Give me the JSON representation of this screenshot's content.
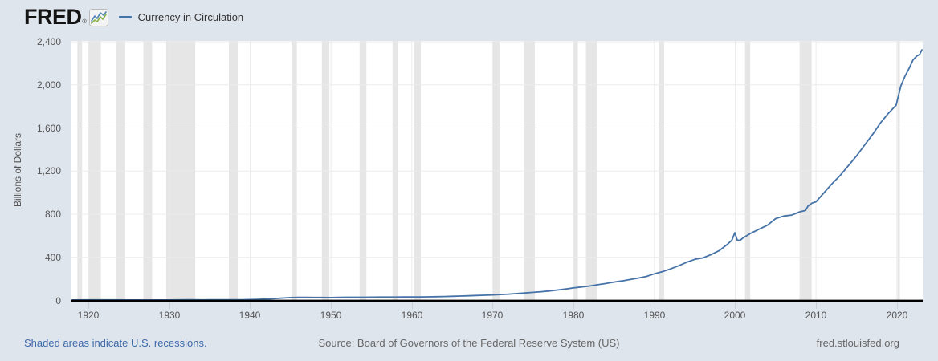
{
  "header": {
    "logo_text": "FRED",
    "logo_registered": "®",
    "legend": {
      "label": "Currency in Circulation"
    }
  },
  "colors": {
    "page_bg": "#dfe5ed",
    "plot_bg": "#ffffff",
    "recession_band": "#e6e6e6",
    "gridline": "#ececec",
    "axis": "#000000",
    "tick": "#c6d0da",
    "line": "#4572a7",
    "label_text": "#555555",
    "footer_text": "#666666",
    "link_blue": "#3d6aa8"
  },
  "chart_data": {
    "type": "line",
    "title": "Currency in Circulation",
    "xlabel": "",
    "ylabel": "Billions of Dollars",
    "x_start": 1917.8,
    "x_end": 2023.2,
    "ylim": [
      0,
      2400
    ],
    "y_ticks": [
      0,
      400,
      800,
      1200,
      1600,
      2000,
      2400
    ],
    "y_tick_labels": [
      "0",
      "400",
      "800",
      "1,200",
      "1,600",
      "2,000",
      "2,400"
    ],
    "x_ticks": [
      1920,
      1930,
      1940,
      1950,
      1960,
      1970,
      1980,
      1990,
      2000,
      2010,
      2020
    ],
    "grid": true,
    "legend_position": "top-left",
    "recessions": [
      [
        1918.62,
        1919.21
      ],
      [
        1920.04,
        1921.54
      ],
      [
        1923.38,
        1924.54
      ],
      [
        1926.79,
        1927.87
      ],
      [
        1929.62,
        1933.21
      ],
      [
        1937.37,
        1938.46
      ],
      [
        1945.12,
        1945.79
      ],
      [
        1948.87,
        1949.79
      ],
      [
        1953.54,
        1954.37
      ],
      [
        1957.62,
        1958.29
      ],
      [
        1960.29,
        1961.12
      ],
      [
        1969.96,
        1970.87
      ],
      [
        1973.87,
        1975.21
      ],
      [
        1980.04,
        1980.54
      ],
      [
        1981.54,
        1982.87
      ],
      [
        1990.54,
        1991.21
      ],
      [
        2001.21,
        2001.87
      ],
      [
        2007.96,
        2009.46
      ],
      [
        2020.08,
        2020.37
      ]
    ],
    "series": [
      {
        "name": "Currency in Circulation",
        "color": "#4572a7",
        "points": [
          [
            1918,
            4.6
          ],
          [
            1920,
            5.4
          ],
          [
            1921,
            4.9
          ],
          [
            1923,
            5.0
          ],
          [
            1925,
            4.8
          ],
          [
            1927,
            4.8
          ],
          [
            1929,
            4.7
          ],
          [
            1930,
            4.5
          ],
          [
            1931,
            5.0
          ],
          [
            1932,
            5.6
          ],
          [
            1933,
            5.7
          ],
          [
            1934,
            5.4
          ],
          [
            1935,
            5.6
          ],
          [
            1936,
            6.0
          ],
          [
            1937,
            6.4
          ],
          [
            1938,
            6.4
          ],
          [
            1939,
            7.0
          ],
          [
            1940,
            8.0
          ],
          [
            1941,
            9.6
          ],
          [
            1942,
            12.3
          ],
          [
            1943,
            17.0
          ],
          [
            1944,
            22.0
          ],
          [
            1945,
            26.5
          ],
          [
            1946,
            28.1
          ],
          [
            1947,
            28.2
          ],
          [
            1948,
            27.8
          ],
          [
            1949,
            27.2
          ],
          [
            1950,
            27.1
          ],
          [
            1951,
            28.0
          ],
          [
            1952,
            29.4
          ],
          [
            1953,
            30.1
          ],
          [
            1954,
            30.0
          ],
          [
            1955,
            30.2
          ],
          [
            1956,
            30.9
          ],
          [
            1957,
            31.1
          ],
          [
            1958,
            31.6
          ],
          [
            1959,
            32.2
          ],
          [
            1960,
            32.1
          ],
          [
            1961,
            32.6
          ],
          [
            1962,
            33.7
          ],
          [
            1963,
            35.1
          ],
          [
            1964,
            36.8
          ],
          [
            1965,
            38.9
          ],
          [
            1966,
            41.0
          ],
          [
            1967,
            43.0
          ],
          [
            1968,
            45.8
          ],
          [
            1969,
            48.6
          ],
          [
            1970,
            51.5
          ],
          [
            1971,
            54.8
          ],
          [
            1972,
            58.8
          ],
          [
            1973,
            63.8
          ],
          [
            1974,
            69.4
          ],
          [
            1975,
            75.1
          ],
          [
            1976,
            81.0
          ],
          [
            1977,
            88.0
          ],
          [
            1978,
            96.7
          ],
          [
            1979,
            105.6
          ],
          [
            1980,
            116.2
          ],
          [
            1981,
            124.8
          ],
          [
            1982,
            134.0
          ],
          [
            1983,
            146.2
          ],
          [
            1984,
            156.9
          ],
          [
            1985,
            170.1
          ],
          [
            1986,
            180.8
          ],
          [
            1987,
            194.6
          ],
          [
            1988,
            207.9
          ],
          [
            1989,
            222.6
          ],
          [
            1990,
            246.8
          ],
          [
            1991,
            267.2
          ],
          [
            1992,
            292.3
          ],
          [
            1993,
            321.7
          ],
          [
            1994,
            354.5
          ],
          [
            1995,
            380.8
          ],
          [
            1996,
            394.1
          ],
          [
            1997,
            424.7
          ],
          [
            1998,
            460.3
          ],
          [
            1999,
            517.6
          ],
          [
            1999.6,
            560
          ],
          [
            1999.95,
            628
          ],
          [
            2000.25,
            560
          ],
          [
            2000.6,
            557
          ],
          [
            2001,
            582
          ],
          [
            2002,
            626
          ],
          [
            2003,
            663
          ],
          [
            2004,
            698
          ],
          [
            2005,
            759
          ],
          [
            2006,
            783
          ],
          [
            2007,
            792
          ],
          [
            2008,
            822
          ],
          [
            2008.7,
            834
          ],
          [
            2009,
            875
          ],
          [
            2009.5,
            903
          ],
          [
            2010,
            915
          ],
          [
            2011,
            1000
          ],
          [
            2012,
            1085
          ],
          [
            2013,
            1160
          ],
          [
            2014,
            1250
          ],
          [
            2015,
            1340
          ],
          [
            2016,
            1440
          ],
          [
            2017,
            1540
          ],
          [
            2018,
            1650
          ],
          [
            2019,
            1740
          ],
          [
            2019.9,
            1810
          ],
          [
            2020.1,
            1870
          ],
          [
            2020.5,
            1990
          ],
          [
            2021,
            2080
          ],
          [
            2021.5,
            2150
          ],
          [
            2022,
            2230
          ],
          [
            2022.5,
            2270
          ],
          [
            2022.8,
            2280
          ],
          [
            2023.1,
            2325
          ]
        ]
      }
    ]
  },
  "footer": {
    "recession_note": "Shaded areas indicate U.S. recessions.",
    "source": "Source: Board of Governors of the Federal Reserve System (US)",
    "site": "fred.stlouisfed.org"
  }
}
